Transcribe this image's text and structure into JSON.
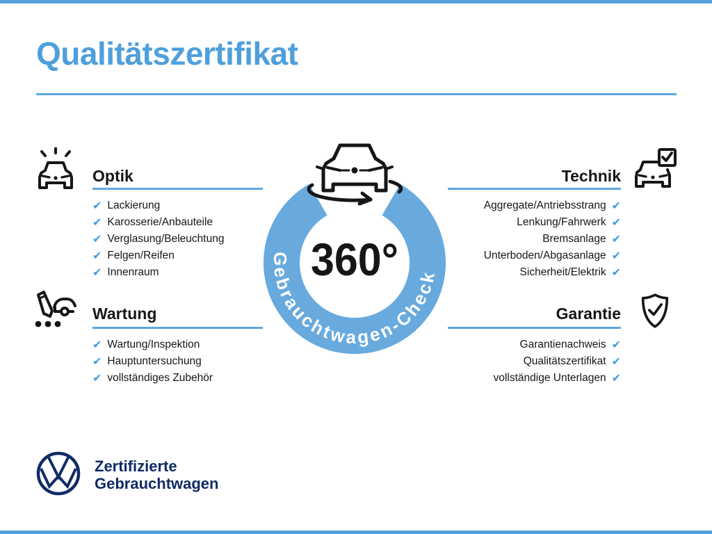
{
  "page": {
    "title": "Qualitätszertifikat",
    "check_glyph": "✔",
    "badge": {
      "center_text": "360°",
      "ring_text": "Gebrauchtwagen-Check"
    },
    "sections": [
      {
        "id": "optik",
        "side": "left",
        "heading": "Optik",
        "icon": "car-shine-icon",
        "items": [
          "Lackierung",
          "Karosserie/Anbauteile",
          "Verglasung/Beleuchtung",
          "Felgen/Reifen",
          "Innenraum"
        ]
      },
      {
        "id": "technik",
        "side": "right",
        "heading": "Technik",
        "icon": "car-checkbox-icon",
        "items": [
          "Aggregate/Antriebsstrang",
          "Lenkung/Fahrwerk",
          "Bremsanlage",
          "Unterboden/Abgasanlage",
          "Sicherheit/Elektrik"
        ]
      },
      {
        "id": "wartung",
        "side": "left",
        "heading": "Wartung",
        "icon": "service-checklist-icon",
        "items": [
          "Wartung/Inspektion",
          "Hauptuntersuchung",
          "vollständiges Zubehör"
        ]
      },
      {
        "id": "garantie",
        "side": "right",
        "heading": "Garantie",
        "icon": "shield-check-icon",
        "items": [
          "Garantienachweis",
          "Qualitätszertifikat",
          "vollständige Unterlagen"
        ]
      }
    ],
    "footer": {
      "line1": "Zertifizierte",
      "line2": "Gebrauchtwagen"
    },
    "colors": {
      "title_blue": "#4f9fdc",
      "ring_blue": "#68aade",
      "rule_blue": "#5ca7e0",
      "check_blue": "#3e9ce2",
      "navy": "#102b66",
      "text": "#161616"
    }
  }
}
